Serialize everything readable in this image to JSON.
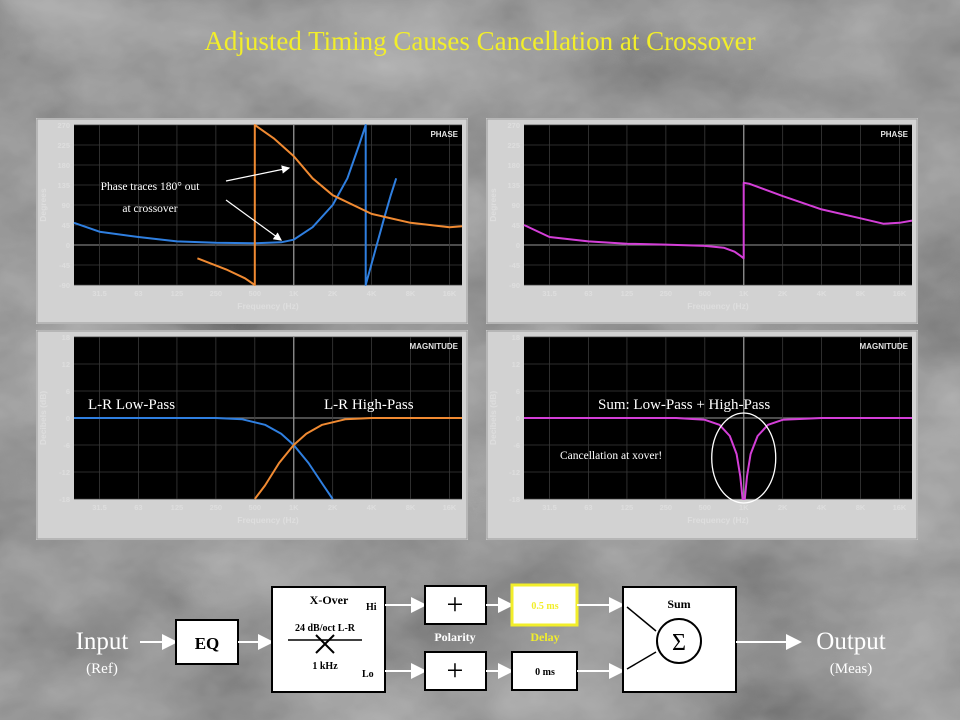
{
  "slide": {
    "title": "Adjusted Timing Causes Cancellation at Crossover"
  },
  "colors": {
    "title": "#f2ee2a",
    "low_pass": "#2f7fe0",
    "high_pass": "#f08a32",
    "sum": "#d43fd8",
    "plot_bg": "#000000",
    "grid": "#3a3a3a",
    "delay_box": "#f2ee2a"
  },
  "chart_data": [
    {
      "id": "phase_lr",
      "type": "line",
      "tag": "PHASE",
      "xlabel": "Frequency (Hz)",
      "ylabel": "Degrees",
      "x_scale": "log",
      "xlim": [
        20,
        20000
      ],
      "ylim": [
        -90,
        270
      ],
      "x_ticks": [
        "31.5",
        "63",
        "125",
        "250",
        "500",
        "1K",
        "2K",
        "4K",
        "8K",
        "16K"
      ],
      "y_ticks": [
        "270",
        "225",
        "180",
        "135",
        "90",
        "45",
        "0",
        "-45",
        "-90"
      ],
      "grid": true,
      "annotation": {
        "lines": [
          "Phase traces 180° out",
          "at crossover"
        ],
        "arrows": 2
      },
      "series": [
        {
          "key": "low",
          "color_ref": "low_pass",
          "points": [
            [
              20,
              50
            ],
            [
              31.5,
              30
            ],
            [
              63,
              18
            ],
            [
              125,
              8
            ],
            [
              250,
              5
            ],
            [
              500,
              4
            ],
            [
              800,
              6
            ],
            [
              1000,
              12
            ],
            [
              1400,
              40
            ],
            [
              2000,
              90
            ],
            [
              2600,
              150
            ],
            [
              3200,
              225
            ],
            [
              3600,
              270
            ],
            [
              3600,
              -90
            ],
            [
              4200,
              -20
            ],
            [
              5000,
              60
            ],
            [
              5600,
              110
            ],
            [
              6200,
              150
            ]
          ]
        },
        {
          "key": "high",
          "color_ref": "high_pass",
          "points": [
            [
              180,
              -30
            ],
            [
              300,
              -55
            ],
            [
              420,
              -75
            ],
            [
              500,
              -90
            ],
            [
              500,
              270
            ],
            [
              700,
              240
            ],
            [
              1000,
              200
            ],
            [
              1400,
              150
            ],
            [
              2000,
              112
            ],
            [
              4000,
              70
            ],
            [
              8000,
              50
            ],
            [
              16000,
              40
            ],
            [
              20000,
              42
            ]
          ]
        }
      ]
    },
    {
      "id": "phase_sum",
      "type": "line",
      "tag": "PHASE",
      "xlabel": "Frequency (Hz)",
      "ylabel": "Degrees",
      "x_scale": "log",
      "xlim": [
        20,
        20000
      ],
      "ylim": [
        -90,
        270
      ],
      "x_ticks": [
        "31.5",
        "63",
        "125",
        "250",
        "500",
        "1K",
        "2K",
        "4K",
        "8K",
        "16K"
      ],
      "y_ticks": [
        "270",
        "225",
        "180",
        "135",
        "90",
        "45",
        "0",
        "-45",
        "-90"
      ],
      "grid": true,
      "series": [
        {
          "key": "sum",
          "color_ref": "sum",
          "points": [
            [
              20,
              45
            ],
            [
              31.5,
              18
            ],
            [
              63,
              8
            ],
            [
              125,
              3
            ],
            [
              250,
              1
            ],
            [
              500,
              -2
            ],
            [
              700,
              -6
            ],
            [
              850,
              -15
            ],
            [
              950,
              -25
            ],
            [
              1000,
              -30
            ],
            [
              1000,
              140
            ],
            [
              1100,
              138
            ],
            [
              2000,
              110
            ],
            [
              4000,
              80
            ],
            [
              8000,
              60
            ],
            [
              12000,
              48
            ],
            [
              16000,
              50
            ],
            [
              20000,
              55
            ]
          ]
        }
      ]
    },
    {
      "id": "mag_lr",
      "type": "line",
      "tag": "MAGNITUDE",
      "xlabel": "Frequency (Hz)",
      "ylabel": "Decibels (dB)",
      "x_scale": "log",
      "xlim": [
        20,
        20000
      ],
      "ylim": [
        -18,
        18
      ],
      "x_ticks": [
        "31.5",
        "63",
        "125",
        "250",
        "500",
        "1K",
        "2K",
        "4K",
        "8K",
        "16K"
      ],
      "y_ticks": [
        "18",
        "12",
        "6",
        "0",
        "-6",
        "-12",
        "-18"
      ],
      "grid": true,
      "labels": {
        "low": "L-R Low-Pass",
        "high": "L-R High-Pass"
      },
      "series": [
        {
          "key": "low",
          "color_ref": "low_pass",
          "points": [
            [
              20,
              0
            ],
            [
              250,
              0
            ],
            [
              400,
              -0.3
            ],
            [
              600,
              -1.5
            ],
            [
              800,
              -3.5
            ],
            [
              1000,
              -6
            ],
            [
              1300,
              -10
            ],
            [
              1700,
              -15
            ],
            [
              2000,
              -18
            ]
          ]
        },
        {
          "key": "high",
          "color_ref": "high_pass",
          "points": [
            [
              500,
              -18
            ],
            [
              600,
              -15
            ],
            [
              770,
              -10
            ],
            [
              1000,
              -6
            ],
            [
              1250,
              -3.5
            ],
            [
              1660,
              -1.5
            ],
            [
              2500,
              -0.3
            ],
            [
              4000,
              0
            ],
            [
              20000,
              0
            ]
          ]
        }
      ]
    },
    {
      "id": "mag_sum",
      "type": "line",
      "tag": "MAGNITUDE",
      "xlabel": "Frequency (Hz)",
      "ylabel": "Decibels (dB)",
      "x_scale": "log",
      "xlim": [
        20,
        20000
      ],
      "ylim": [
        -18,
        18
      ],
      "x_ticks": [
        "31.5",
        "63",
        "125",
        "250",
        "500",
        "1K",
        "2K",
        "4K",
        "8K",
        "16K"
      ],
      "y_ticks": [
        "18",
        "12",
        "6",
        "0",
        "-6",
        "-12",
        "-18"
      ],
      "grid": true,
      "labels": {
        "sum": "Sum: Low-Pass + High-Pass",
        "callout": "Cancellation at xover!"
      },
      "series": [
        {
          "key": "sum",
          "color_ref": "sum",
          "points": [
            [
              20,
              0
            ],
            [
              300,
              0
            ],
            [
              500,
              -0.4
            ],
            [
              650,
              -1.5
            ],
            [
              780,
              -4
            ],
            [
              880,
              -8
            ],
            [
              940,
              -13
            ],
            [
              980,
              -18
            ],
            [
              1020,
              -18
            ],
            [
              1060,
              -13
            ],
            [
              1130,
              -8
            ],
            [
              1280,
              -4
            ],
            [
              1540,
              -1.5
            ],
            [
              2000,
              -0.4
            ],
            [
              4000,
              0
            ],
            [
              20000,
              0
            ]
          ]
        }
      ]
    }
  ],
  "diagram": {
    "input": "Input",
    "input_sub": "(Ref)",
    "eq": "EQ",
    "xover_title": "X-Over",
    "xover_slope": "24 dB/oct L-R",
    "xover_freq": "1 kHz",
    "hi": "Hi",
    "lo": "Lo",
    "plus_symbol": "+",
    "polarity": "Polarity",
    "delay_hi": "0.5  ms",
    "delay_lo": "0  ms",
    "delay": "Delay",
    "sum": "Sum",
    "sigma": "Σ",
    "output": "Output",
    "output_sub": "(Meas)"
  }
}
